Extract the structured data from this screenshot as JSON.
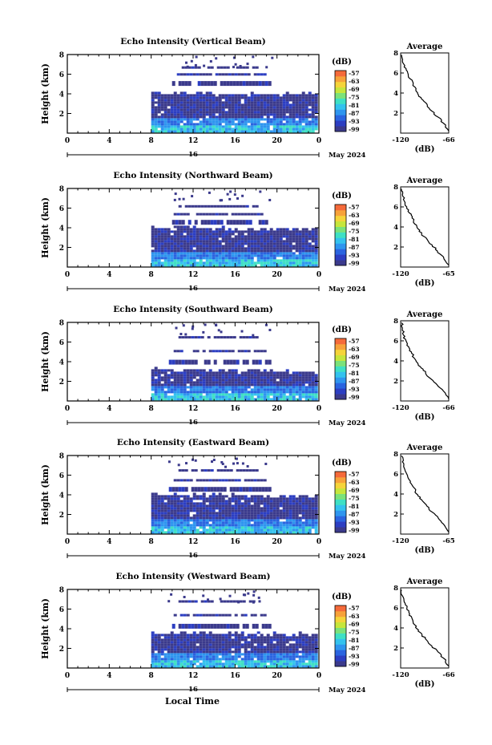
{
  "figure": {
    "local_time_label": "Local Time",
    "date_label": "May 2024",
    "date_marker": "16",
    "colorbar_unit": "(dB)",
    "colorbar_ticks": [
      "-57",
      "-63",
      "-69",
      "-75",
      "-81",
      "-87",
      "-93",
      "-99"
    ],
    "colorbar_colors": [
      "#3b3a8c",
      "#2c3ec2",
      "#2a64e0",
      "#2e95ef",
      "#33c2ee",
      "#3ee0c4",
      "#7be27a",
      "#c6e63c",
      "#f5d43a",
      "#f7a23a",
      "#f56a3a"
    ],
    "average_title": "Average",
    "average_unit": "(dB)"
  },
  "chart_data": [
    {
      "type": "heatmap",
      "title": "Echo Intensity (Vertical Beam)",
      "ylabel": "Height (km)",
      "xlim": [
        0,
        24
      ],
      "ylim": [
        0,
        8
      ],
      "x_ticks": [
        "0",
        "4",
        "8",
        "12",
        "16",
        "20",
        "0"
      ],
      "y_ticks": [
        "2",
        "4",
        "6",
        "8"
      ],
      "colorbar_range_dB": [
        -99,
        -57
      ],
      "data_start_hour": 8,
      "layer_tops_km": [
        4.0,
        5.3,
        6.1,
        6.8
      ],
      "average_profile": {
        "xlim": [
          -120,
          -66
        ],
        "x_ticks": [
          "-120",
          "-66"
        ],
        "y_ticks": [
          "2",
          "4",
          "6",
          "8"
        ],
        "height_km": [
          0.2,
          1.0,
          1.6,
          2.2,
          2.8,
          3.3,
          3.8,
          4.3,
          4.9,
          5.4,
          6.0,
          6.6,
          7.2,
          7.8
        ],
        "echo_dB": [
          -66,
          -72,
          -78,
          -85,
          -90,
          -95,
          -100,
          -103,
          -106,
          -109,
          -112,
          -116,
          -118,
          -119
        ]
      }
    },
    {
      "type": "heatmap",
      "title": "Echo Intensity (Northward Beam)",
      "ylabel": "Height (km)",
      "xlim": [
        0,
        24
      ],
      "ylim": [
        0,
        8
      ],
      "x_ticks": [
        "0",
        "4",
        "8",
        "12",
        "16",
        "20",
        "0"
      ],
      "y_ticks": [
        "2",
        "4",
        "6",
        "8"
      ],
      "colorbar_range_dB": [
        -99,
        -57
      ],
      "data_start_hour": 8,
      "layer_tops_km": [
        3.9,
        4.8,
        5.5,
        6.3
      ],
      "average_profile": {
        "xlim": [
          -120,
          -65
        ],
        "x_ticks": [
          "-120",
          "-65"
        ],
        "y_ticks": [
          "2",
          "4",
          "6",
          "8"
        ],
        "height_km": [
          0.2,
          1.0,
          1.6,
          2.2,
          2.8,
          3.3,
          3.8,
          4.3,
          4.9,
          5.4,
          6.0,
          6.6,
          7.2,
          7.8
        ],
        "echo_dB": [
          -65,
          -71,
          -78,
          -84,
          -90,
          -96,
          -100,
          -104,
          -107,
          -110,
          -113,
          -116,
          -118,
          -119
        ]
      }
    },
    {
      "type": "heatmap",
      "title": "Echo Intensity (Southward Beam)",
      "ylabel": "Height (km)",
      "xlim": [
        0,
        24
      ],
      "ylim": [
        0,
        8
      ],
      "x_ticks": [
        "0",
        "4",
        "8",
        "12",
        "16",
        "20",
        "0"
      ],
      "y_ticks": [
        "2",
        "4",
        "6",
        "8"
      ],
      "colorbar_range_dB": [
        -99,
        -57
      ],
      "data_start_hour": 8,
      "layer_tops_km": [
        3.1,
        4.2,
        5.2,
        6.6
      ],
      "average_profile": {
        "xlim": [
          -120,
          -66
        ],
        "x_ticks": [
          "-120",
          "-66"
        ],
        "y_ticks": [
          "2",
          "4",
          "6",
          "8"
        ],
        "height_km": [
          0.2,
          1.0,
          1.6,
          2.2,
          2.8,
          3.3,
          3.8,
          4.3,
          4.9,
          5.4,
          6.0,
          6.6,
          7.2,
          7.8
        ],
        "echo_dB": [
          -66,
          -72,
          -79,
          -86,
          -92,
          -97,
          -101,
          -105,
          -108,
          -111,
          -114,
          -117,
          -118,
          -119
        ]
      }
    },
    {
      "type": "heatmap",
      "title": "Echo Intensity (Eastward Beam)",
      "ylabel": "Height (km)",
      "xlim": [
        0,
        24
      ],
      "ylim": [
        0,
        8
      ],
      "x_ticks": [
        "0",
        "4",
        "8",
        "12",
        "16",
        "20",
        "0"
      ],
      "y_ticks": [
        "2",
        "4",
        "6",
        "8"
      ],
      "colorbar_range_dB": [
        -99,
        -57
      ],
      "data_start_hour": 8,
      "layer_tops_km": [
        3.9,
        4.8,
        5.6,
        6.6
      ],
      "average_profile": {
        "xlim": [
          -120,
          -65
        ],
        "x_ticks": [
          "-120",
          "-65"
        ],
        "y_ticks": [
          "2",
          "4",
          "6",
          "8"
        ],
        "height_km": [
          0.2,
          1.0,
          1.6,
          2.2,
          2.8,
          3.3,
          3.8,
          4.3,
          4.9,
          5.4,
          6.0,
          6.6,
          7.2,
          7.8
        ],
        "echo_dB": [
          -65,
          -71,
          -77,
          -84,
          -90,
          -95,
          -100,
          -103,
          -107,
          -110,
          -113,
          -116,
          -118,
          -119
        ]
      }
    },
    {
      "type": "heatmap",
      "title": "Echo Intensity (Westward Beam)",
      "ylabel": "Height (km)",
      "xlim": [
        0,
        24
      ],
      "ylim": [
        0,
        8
      ],
      "x_ticks": [
        "0",
        "4",
        "8",
        "12",
        "16",
        "20",
        "0"
      ],
      "y_ticks": [
        "2",
        "4",
        "6",
        "8"
      ],
      "colorbar_range_dB": [
        -99,
        -57
      ],
      "data_start_hour": 8,
      "layer_tops_km": [
        3.5,
        4.5,
        5.5,
        6.9
      ],
      "average_profile": {
        "xlim": [
          -120,
          -66
        ],
        "x_ticks": [
          "-120",
          "-66"
        ],
        "y_ticks": [
          "2",
          "4",
          "6",
          "8"
        ],
        "height_km": [
          0.2,
          1.0,
          1.6,
          2.2,
          2.8,
          3.3,
          3.8,
          4.3,
          4.9,
          5.4,
          6.0,
          6.6,
          7.2,
          7.8
        ],
        "echo_dB": [
          -66,
          -72,
          -78,
          -85,
          -91,
          -96,
          -100,
          -104,
          -107,
          -110,
          -113,
          -116,
          -118,
          -119
        ]
      }
    }
  ]
}
